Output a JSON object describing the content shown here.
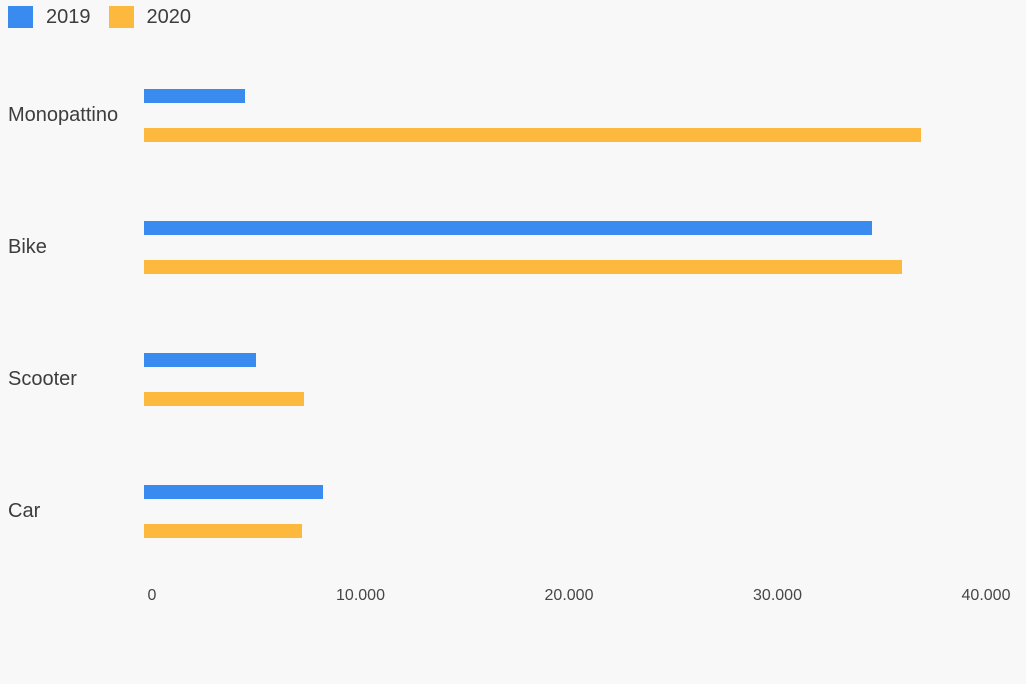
{
  "background": "#f8f8f8",
  "text_color": "#3d3d3d",
  "axis_text_color": "#464646",
  "legend": {
    "items": [
      {
        "label": "2019",
        "color": "#398bf0"
      },
      {
        "label": "2020",
        "color": "#fdb93e"
      }
    ]
  },
  "chart_data": {
    "type": "bar",
    "orientation": "horizontal",
    "title": "",
    "xlabel": "",
    "ylabel": "",
    "categories": [
      "Monopattino",
      "Bike",
      "Scooter",
      "Car"
    ],
    "series": [
      {
        "name": "2019",
        "color": "#398bf0",
        "values": [
          4800,
          34600,
          5300,
          8500
        ]
      },
      {
        "name": "2020",
        "color": "#fdb93e",
        "values": [
          36900,
          36000,
          7600,
          7500
        ]
      }
    ],
    "xlim": [
      0,
      40000
    ],
    "x_ticks": [
      0,
      10000,
      20000,
      30000,
      40000
    ],
    "x_tick_labels": [
      "0",
      "10.000",
      "20.000",
      "30.000",
      "40.000"
    ],
    "grid": false,
    "legend_position": "top-left"
  }
}
